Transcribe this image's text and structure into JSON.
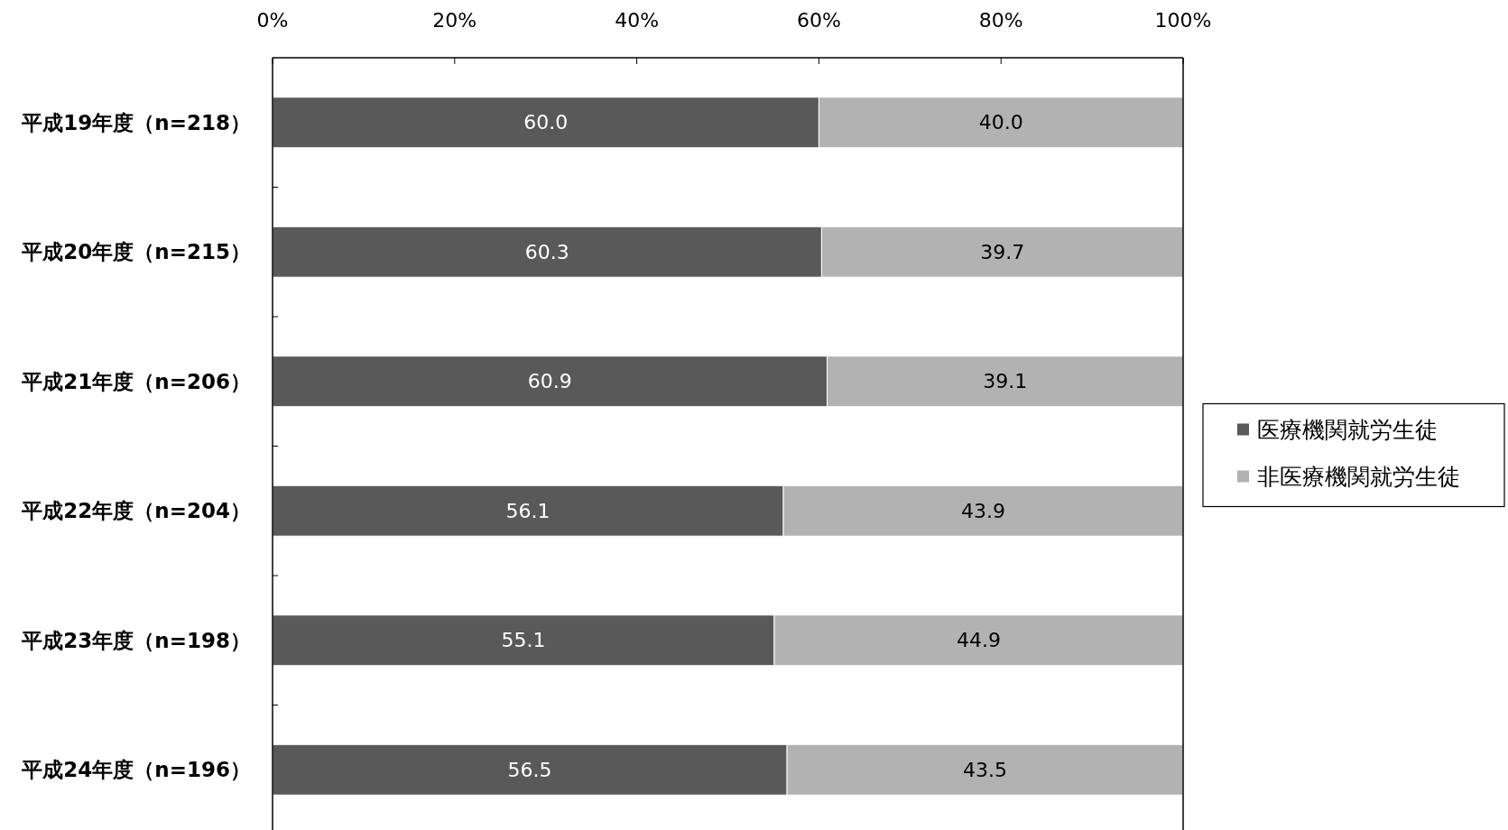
{
  "chart_data": {
    "type": "bar",
    "orientation": "horizontal",
    "stacked": true,
    "categories": [
      "平成19年度（n=218）",
      "平成20年度（n=215）",
      "平成21年度（n=206）",
      "平成22年度（n=204）",
      "平成23年度（n=198）",
      "平成24年度（n=196）"
    ],
    "series": [
      {
        "name": "医療機関就労生徒",
        "color": "#595959",
        "values": [
          60.0,
          60.3,
          60.9,
          56.1,
          55.1,
          56.5
        ],
        "value_labels": [
          "60.0",
          "60.3",
          "60.9",
          "56.1",
          "55.1",
          "56.5"
        ]
      },
      {
        "name": "非医療機関就労生徒",
        "color": "#b2b2b2",
        "values": [
          40.0,
          39.7,
          39.1,
          43.9,
          44.9,
          43.5
        ],
        "value_labels": [
          "40.0",
          "39.7",
          "39.1",
          "43.9",
          "44.9",
          "43.5"
        ]
      }
    ],
    "xlim": [
      0,
      100
    ],
    "xticks": [
      {
        "value": 0,
        "label": "0%"
      },
      {
        "value": 20,
        "label": "20%"
      },
      {
        "value": 40,
        "label": "40%"
      },
      {
        "value": 60,
        "label": "60%"
      },
      {
        "value": 80,
        "label": "80%"
      },
      {
        "value": 100,
        "label": "100%"
      }
    ],
    "grid": false,
    "legend": "right"
  }
}
